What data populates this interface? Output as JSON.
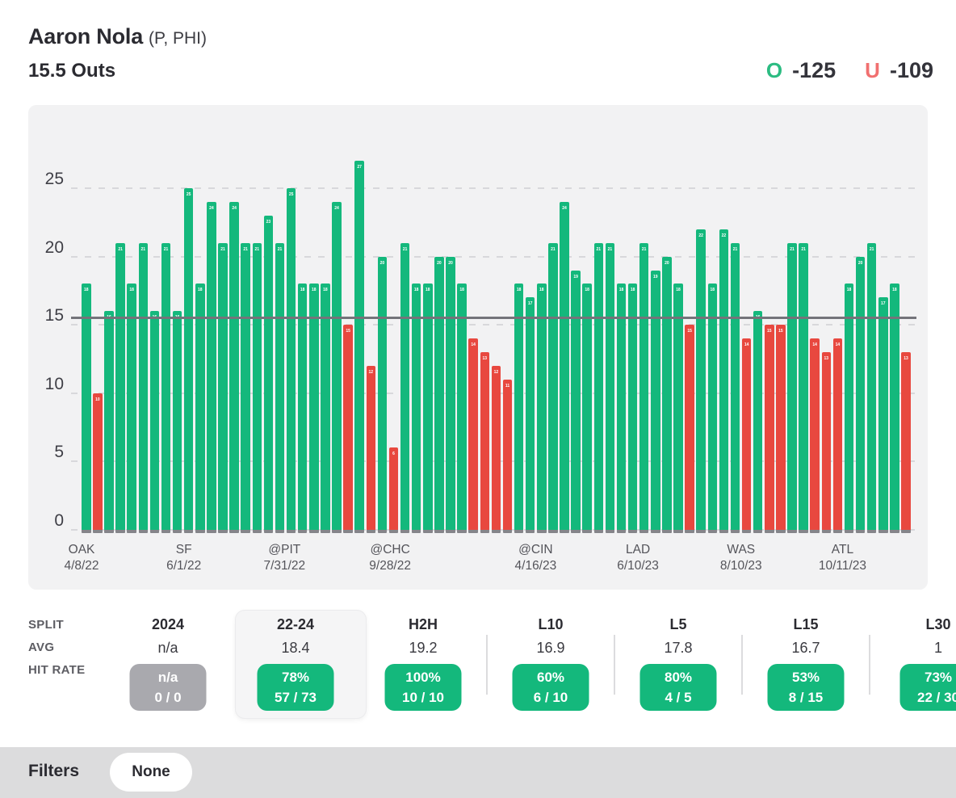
{
  "header": {
    "player_name": "Aaron Nola",
    "player_meta": "(P, PHI)",
    "prop_line": "15.5 Outs",
    "over_label": "O",
    "over_odds": "-125",
    "under_label": "U",
    "under_odds": "-109"
  },
  "colors": {
    "over_green": "#14b87c",
    "under_red": "#e8483f",
    "over_indicator_green": "#2cbc82",
    "under_indicator_salmon": "#f17070",
    "betting_line_gray": "#74747a",
    "panel_bg": "#f2f2f3",
    "pill_gray": "#a9a9ae",
    "filters_bar_bg": "#dcdcdd"
  },
  "chart_data": {
    "type": "bar",
    "title": "",
    "xlabel": "",
    "ylabel": "",
    "grid": "dashed horizontal",
    "legend": "none",
    "betting_line": 15.5,
    "yticks": [
      0,
      5,
      10,
      15,
      20,
      25
    ],
    "ylim": [
      0,
      27.5
    ],
    "values": [
      18,
      10,
      16,
      21,
      18,
      21,
      16,
      21,
      16,
      25,
      18,
      24,
      21,
      24,
      21,
      21,
      23,
      21,
      25,
      18,
      18,
      18,
      24,
      15,
      27,
      12,
      20,
      6,
      21,
      18,
      18,
      20,
      20,
      18,
      14,
      13,
      12,
      11,
      18,
      17,
      18,
      21,
      24,
      19,
      18,
      21,
      21,
      18,
      18,
      21,
      19,
      20,
      18,
      15,
      22,
      18,
      22,
      21,
      14,
      16,
      15,
      15,
      21,
      21,
      14,
      13,
      14,
      18,
      20,
      21,
      17,
      18,
      13
    ],
    "color_rule": "green when value is over 15.5, red when under",
    "x_axis_labels": [
      {
        "team": "OAK",
        "date": "4/8/22",
        "pos_pct": 0.0
      },
      {
        "team": "SF",
        "date": "6/1/22",
        "pos_pct": 12.3
      },
      {
        "team": "@PIT",
        "date": "7/31/22",
        "pos_pct": 24.4
      },
      {
        "team": "@CHC",
        "date": "9/28/22",
        "pos_pct": 37.1
      },
      {
        "team": "@CIN",
        "date": "4/16/23",
        "pos_pct": 54.6
      },
      {
        "team": "LAD",
        "date": "6/10/23",
        "pos_pct": 66.9
      },
      {
        "team": "WAS",
        "date": "8/10/23",
        "pos_pct": 79.3
      },
      {
        "team": "ATL",
        "date": "10/11/23",
        "pos_pct": 91.5
      }
    ]
  },
  "splits_table": {
    "row_labels": [
      "SPLIT",
      "AVG",
      "HIT RATE"
    ],
    "columns": [
      {
        "label": "2024",
        "avg": "n/a",
        "hit_pct": "n/a",
        "hit_frac": "0 / 0",
        "pill": "gray",
        "selected": false
      },
      {
        "label": "22-24",
        "avg": "18.4",
        "hit_pct": "78%",
        "hit_frac": "57 / 73",
        "pill": "green",
        "selected": true
      },
      {
        "label": "H2H",
        "avg": "19.2",
        "hit_pct": "100%",
        "hit_frac": "10 / 10",
        "pill": "green",
        "selected": false
      },
      {
        "label": "L10",
        "avg": "16.9",
        "hit_pct": "60%",
        "hit_frac": "6 / 10",
        "pill": "green",
        "selected": false
      },
      {
        "label": "L5",
        "avg": "17.8",
        "hit_pct": "80%",
        "hit_frac": "4 / 5",
        "pill": "green",
        "selected": false
      },
      {
        "label": "L15",
        "avg": "16.7",
        "hit_pct": "53%",
        "hit_frac": "8 / 15",
        "pill": "green",
        "selected": false
      },
      {
        "label": "L30",
        "avg": "1",
        "hit_pct": "73%",
        "hit_frac": "22 / 30",
        "pill": "green",
        "selected": false,
        "clipped": true
      }
    ]
  },
  "filters": {
    "label": "Filters",
    "value": "None"
  }
}
